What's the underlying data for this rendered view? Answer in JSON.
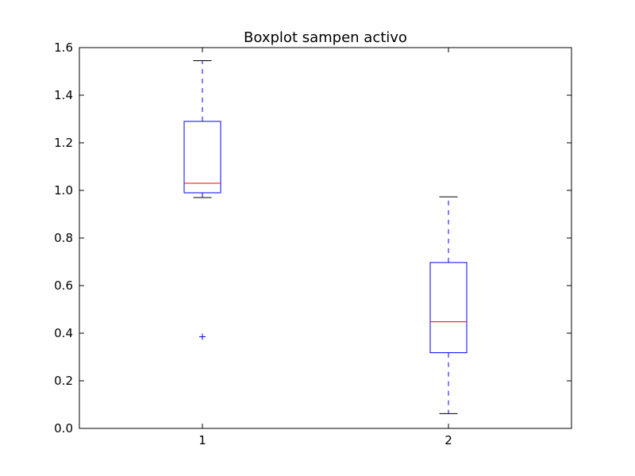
{
  "chart_data": {
    "type": "boxplot",
    "title": "Boxplot sampen activo",
    "xlabel": "",
    "ylabel": "",
    "categories": [
      "1",
      "2"
    ],
    "ylim": [
      0.0,
      1.6
    ],
    "yticks": [
      "0.0",
      "0.2",
      "0.4",
      "0.6",
      "0.8",
      "1.0",
      "1.2",
      "1.4",
      "1.6"
    ],
    "grid": false,
    "boxes": [
      {
        "label": "1",
        "whisker_low": 0.97,
        "q1": 0.99,
        "median": 1.03,
        "q3": 1.29,
        "whisker_high": 1.545,
        "outliers": [
          0.385
        ]
      },
      {
        "label": "2",
        "whisker_low": 0.062,
        "q1": 0.318,
        "median": 0.448,
        "q3": 0.697,
        "whisker_high": 0.973,
        "outliers": []
      }
    ],
    "colors": {
      "box": "#0000ff",
      "median": "#ff0000",
      "cap": "#000000",
      "flier": "#0000ff"
    }
  }
}
